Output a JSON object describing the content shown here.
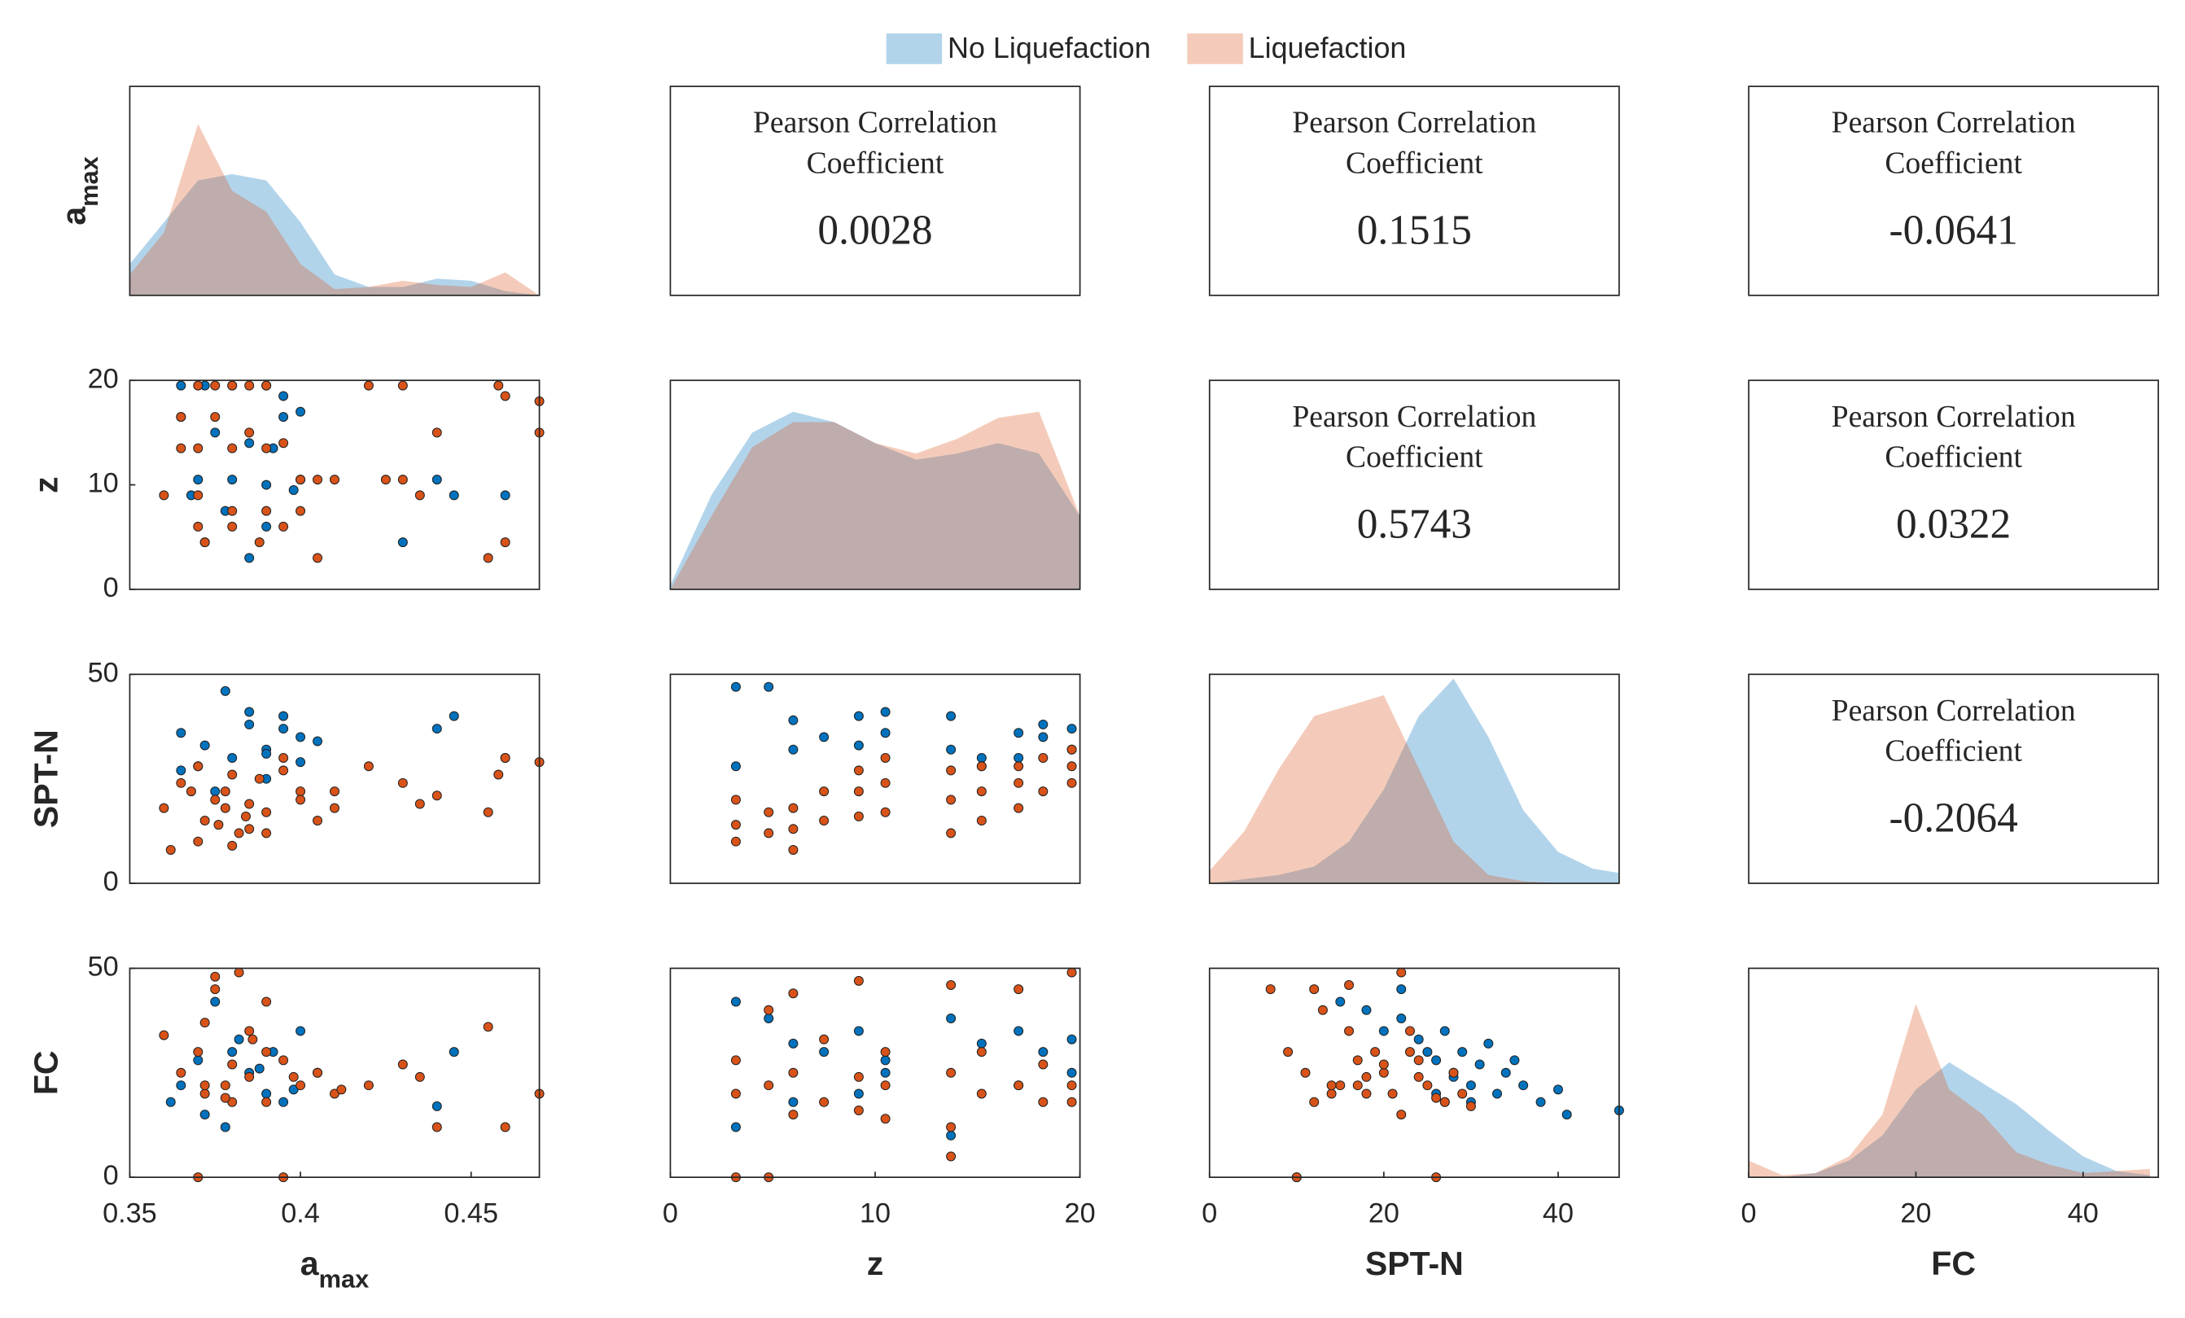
{
  "chart_data": [
    {
      "type": "density",
      "ylabel": {
        "text": "a",
        "sub": "max"
      },
      "xlim": [
        0.35,
        0.47
      ],
      "x": [
        0.35,
        0.36,
        0.37,
        0.38,
        0.39,
        0.4,
        0.41,
        0.42,
        0.43,
        0.44,
        0.45,
        0.46,
        0.47
      ],
      "series": [
        {
          "name": "No Liquefaction",
          "color": "#0072BD",
          "values": [
            0.15,
            0.35,
            0.55,
            0.58,
            0.55,
            0.35,
            0.1,
            0.04,
            0.04,
            0.08,
            0.07,
            0.02,
            0.0
          ]
        },
        {
          "name": "Liquefaction",
          "color": "#D95319",
          "values": [
            0.1,
            0.3,
            0.82,
            0.5,
            0.4,
            0.15,
            0.03,
            0.04,
            0.07,
            0.05,
            0.04,
            0.11,
            0.0
          ]
        }
      ]
    },
    {
      "type": "text",
      "title": [
        "Pearson Correlation",
        "Coefficient"
      ],
      "value": 0.0028
    },
    {
      "type": "text",
      "title": [
        "Pearson Correlation",
        "Coefficient"
      ],
      "value": 0.1515
    },
    {
      "type": "text",
      "title": [
        "Pearson Correlation",
        "Coefficient"
      ],
      "value": -0.0641
    },
    {
      "type": "scatter",
      "ylabel": "z",
      "xlim": [
        0.35,
        0.47
      ],
      "ylim": [
        0,
        20
      ],
      "yticks": [
        0,
        10,
        20
      ],
      "series": [
        {
          "color": "#0072BD",
          "x": [
            0.365,
            0.372,
            0.38,
            0.39,
            0.395,
            0.4,
            0.365,
            0.375,
            0.385,
            0.392,
            0.37,
            0.38,
            0.39,
            0.398,
            0.4,
            0.368,
            0.378,
            0.39,
            0.372,
            0.385,
            0.44,
            0.445,
            0.46,
            0.43,
            0.395
          ],
          "y": [
            19.5,
            19.5,
            19.5,
            19.5,
            18.5,
            17,
            16.5,
            15,
            14,
            13.5,
            10.5,
            10.5,
            10,
            9.5,
            10.5,
            9,
            7.5,
            6,
            4.5,
            3,
            10.5,
            9,
            9,
            4.5,
            16.5
          ]
        },
        {
          "color": "#D95319",
          "x": [
            0.37,
            0.375,
            0.38,
            0.385,
            0.39,
            0.42,
            0.43,
            0.458,
            0.46,
            0.47,
            0.365,
            0.375,
            0.385,
            0.395,
            0.365,
            0.37,
            0.38,
            0.39,
            0.4,
            0.405,
            0.41,
            0.425,
            0.43,
            0.435,
            0.36,
            0.37,
            0.38,
            0.39,
            0.4,
            0.37,
            0.38,
            0.395,
            0.372,
            0.388,
            0.405,
            0.455,
            0.46,
            0.44,
            0.47
          ],
          "y": [
            19.5,
            19.5,
            19.5,
            19.5,
            19.5,
            19.5,
            19.5,
            19.5,
            18.5,
            18,
            16.5,
            16.5,
            15,
            14,
            13.5,
            13.5,
            13.5,
            13.5,
            10.5,
            10.5,
            10.5,
            10.5,
            10.5,
            9,
            9,
            9,
            7.5,
            7.5,
            7.5,
            6,
            6,
            6,
            4.5,
            4.5,
            3,
            3,
            4.5,
            15,
            15
          ]
        }
      ]
    },
    {
      "type": "density",
      "xlim": [
        0,
        20
      ],
      "x": [
        0,
        2,
        4,
        6,
        8,
        10,
        12,
        14,
        16,
        18,
        20
      ],
      "series": [
        {
          "name": "No Liquefaction",
          "color": "#0072BD",
          "values": [
            0.02,
            0.45,
            0.75,
            0.85,
            0.8,
            0.7,
            0.62,
            0.65,
            0.7,
            0.65,
            0.35
          ]
        },
        {
          "name": "Liquefaction",
          "color": "#D95319",
          "values": [
            0.0,
            0.35,
            0.68,
            0.8,
            0.8,
            0.7,
            0.65,
            0.72,
            0.82,
            0.85,
            0.35
          ]
        }
      ]
    },
    {
      "type": "text",
      "title": [
        "Pearson Correlation",
        "Coefficient"
      ],
      "value": 0.5743
    },
    {
      "type": "text",
      "title": [
        "Pearson Correlation",
        "Coefficient"
      ],
      "value": 0.0322
    },
    {
      "type": "scatter",
      "ylabel": "SPT-N",
      "xlim": [
        0.35,
        0.47
      ],
      "ylim": [
        0,
        50
      ],
      "yticks": [
        0,
        50
      ],
      "series": [
        {
          "color": "#0072BD",
          "x": [
            0.365,
            0.372,
            0.378,
            0.385,
            0.39,
            0.395,
            0.4,
            0.405,
            0.37,
            0.38,
            0.39,
            0.395,
            0.375,
            0.385,
            0.4,
            0.44,
            0.445,
            0.46,
            0.365,
            0.39
          ],
          "y": [
            36,
            33,
            46,
            38,
            32,
            40,
            35,
            34,
            28,
            30,
            25,
            37,
            22,
            41,
            29,
            37,
            40,
            30,
            27,
            31
          ]
        },
        {
          "color": "#D95319",
          "x": [
            0.36,
            0.365,
            0.37,
            0.372,
            0.375,
            0.378,
            0.38,
            0.382,
            0.385,
            0.388,
            0.39,
            0.395,
            0.4,
            0.405,
            0.41,
            0.42,
            0.43,
            0.435,
            0.44,
            0.455,
            0.46,
            0.47,
            0.362,
            0.37,
            0.376,
            0.38,
            0.385,
            0.39,
            0.4,
            0.41,
            0.368,
            0.378,
            0.384,
            0.395,
            0.458
          ],
          "y": [
            18,
            24,
            28,
            15,
            20,
            22,
            26,
            12,
            19,
            25,
            17,
            30,
            22,
            15,
            18,
            28,
            24,
            19,
            21,
            17,
            30,
            29,
            8,
            10,
            14,
            9,
            13,
            12,
            20,
            22,
            22,
            18,
            16,
            27,
            26
          ]
        }
      ]
    },
    {
      "type": "scatter",
      "xlim": [
        0,
        20
      ],
      "ylim": [
        0,
        50
      ],
      "series": [
        {
          "color": "#0072BD",
          "x": [
            3.2,
            4.8,
            6,
            7.5,
            9.2,
            10.5,
            13.7,
            15.2,
            17,
            18.2,
            19.6,
            3.2,
            6,
            9.2,
            10.5,
            13.7,
            15.2,
            18.2,
            19.6,
            17
          ],
          "y": [
            47,
            47,
            39,
            35,
            40,
            41,
            40,
            30,
            36,
            38,
            37,
            28,
            32,
            33,
            36,
            32,
            28,
            35,
            32,
            30
          ]
        },
        {
          "color": "#D95319",
          "x": [
            3.2,
            3.2,
            3.2,
            4.8,
            4.8,
            6,
            6,
            6,
            7.5,
            7.5,
            9.2,
            9.2,
            9.2,
            10.5,
            10.5,
            10.5,
            13.7,
            13.7,
            13.7,
            15.2,
            15.2,
            15.2,
            17,
            17,
            17,
            18.2,
            18.2,
            19.6,
            19.6,
            19.6
          ],
          "y": [
            10,
            14,
            20,
            12,
            17,
            8,
            13,
            18,
            15,
            22,
            16,
            22,
            27,
            17,
            24,
            30,
            12,
            20,
            27,
            15,
            22,
            28,
            18,
            24,
            28,
            22,
            30,
            24,
            28,
            32
          ]
        }
      ]
    },
    {
      "type": "density",
      "xlim": [
        0,
        47
      ],
      "x": [
        0,
        4,
        8,
        12,
        16,
        20,
        24,
        28,
        32,
        36,
        40,
        44,
        47
      ],
      "series": [
        {
          "name": "No Liquefaction",
          "color": "#0072BD",
          "values": [
            0.0,
            0.02,
            0.04,
            0.08,
            0.2,
            0.45,
            0.8,
            0.98,
            0.7,
            0.35,
            0.15,
            0.07,
            0.05
          ]
        },
        {
          "name": "Liquefaction",
          "color": "#D95319",
          "values": [
            0.06,
            0.25,
            0.55,
            0.8,
            0.85,
            0.9,
            0.55,
            0.2,
            0.04,
            0.01,
            0.0,
            0.0,
            0.0
          ]
        }
      ]
    },
    {
      "type": "text",
      "title": [
        "Pearson Correlation",
        "Coefficient"
      ],
      "value": -0.2064
    },
    {
      "type": "scatter",
      "ylabel": "FC",
      "xlabel": {
        "text": "a",
        "sub": "max"
      },
      "xlim": [
        0.35,
        0.47
      ],
      "ylim": [
        0,
        50
      ],
      "xticks": [
        0.35,
        0.4,
        0.45
      ],
      "yticks": [
        0,
        50
      ],
      "series": [
        {
          "color": "#0072BD",
          "x": [
            0.362,
            0.37,
            0.375,
            0.38,
            0.385,
            0.39,
            0.395,
            0.4,
            0.365,
            0.378,
            0.388,
            0.398,
            0.44,
            0.445,
            0.372,
            0.405,
            0.382,
            0.392
          ],
          "y": [
            18,
            28,
            42,
            30,
            25,
            20,
            18,
            35,
            22,
            12,
            26,
            21,
            17,
            30,
            15,
            25,
            33,
            30
          ]
        },
        {
          "color": "#D95319",
          "x": [
            0.36,
            0.365,
            0.37,
            0.372,
            0.375,
            0.378,
            0.38,
            0.382,
            0.385,
            0.39,
            0.395,
            0.4,
            0.405,
            0.41,
            0.42,
            0.43,
            0.435,
            0.44,
            0.455,
            0.46,
            0.47,
            0.37,
            0.375,
            0.38,
            0.385,
            0.39,
            0.395,
            0.372,
            0.378,
            0.386,
            0.398,
            0.412,
            0.372,
            0.39
          ],
          "y": [
            34,
            25,
            30,
            20,
            45,
            22,
            27,
            49,
            24,
            18,
            28,
            22,
            25,
            20,
            22,
            27,
            24,
            12,
            36,
            12,
            20,
            0,
            48,
            18,
            35,
            30,
            0,
            22,
            19,
            33,
            24,
            21,
            37,
            42
          ]
        }
      ]
    },
    {
      "type": "scatter",
      "xlabel": "z",
      "xlim": [
        0,
        20
      ],
      "ylim": [
        0,
        50
      ],
      "xticks": [
        0,
        10,
        20
      ],
      "series": [
        {
          "color": "#0072BD",
          "x": [
            3.2,
            4.8,
            6,
            7.5,
            9.2,
            10.5,
            13.7,
            15.2,
            17,
            18.2,
            19.6,
            3.2,
            6,
            9.2,
            13.7,
            17,
            19.6,
            10.5
          ],
          "y": [
            42,
            38,
            32,
            30,
            35,
            25,
            38,
            32,
            35,
            30,
            33,
            12,
            18,
            20,
            10,
            22,
            25,
            28
          ]
        },
        {
          "color": "#D95319",
          "x": [
            3.2,
            3.2,
            3.2,
            4.8,
            4.8,
            4.8,
            6,
            6,
            7.5,
            7.5,
            9.2,
            9.2,
            9.2,
            10.5,
            10.5,
            13.7,
            13.7,
            13.7,
            15.2,
            15.2,
            17,
            17,
            18.2,
            18.2,
            19.6,
            19.6,
            19.6,
            13.7,
            6,
            10.5
          ],
          "y": [
            0,
            20,
            28,
            0,
            22,
            40,
            44,
            25,
            33,
            18,
            47,
            24,
            16,
            22,
            30,
            46,
            25,
            12,
            30,
            20,
            45,
            22,
            27,
            18,
            49,
            22,
            18,
            5,
            15,
            14
          ]
        }
      ]
    },
    {
      "type": "scatter",
      "xlabel": "SPT-N",
      "xlim": [
        0,
        47
      ],
      "ylim": [
        0,
        50
      ],
      "xticks": [
        0,
        20,
        40
      ],
      "series": [
        {
          "color": "#0072BD",
          "x": [
            15,
            18,
            20,
            22,
            24,
            25,
            26,
            27,
            28,
            29,
            30,
            31,
            32,
            33,
            34,
            36,
            38,
            40,
            41,
            47,
            22,
            26,
            30,
            35,
            28
          ],
          "y": [
            42,
            40,
            35,
            38,
            33,
            30,
            28,
            35,
            25,
            30,
            22,
            27,
            32,
            20,
            25,
            22,
            18,
            21,
            15,
            16,
            45,
            20,
            18,
            28,
            24
          ]
        },
        {
          "color": "#D95319",
          "x": [
            7,
            9,
            10,
            11,
            12,
            13,
            14,
            15,
            16,
            17,
            18,
            19,
            20,
            21,
            22,
            23,
            24,
            25,
            26,
            27,
            28,
            29,
            30,
            12,
            14,
            16,
            18,
            20,
            22,
            24,
            26,
            10,
            17,
            23,
            27
          ],
          "y": [
            45,
            30,
            0,
            25,
            45,
            40,
            20,
            22,
            46,
            28,
            24,
            30,
            25,
            20,
            49,
            35,
            28,
            22,
            0,
            18,
            25,
            20,
            17,
            18,
            22,
            35,
            20,
            27,
            15,
            24,
            19,
            0,
            22,
            30,
            18
          ]
        }
      ]
    },
    {
      "type": "density",
      "xlabel": "FC",
      "xlim": [
        0,
        49
      ],
      "xticks": [
        0,
        20,
        40
      ],
      "x": [
        0,
        4,
        8,
        12,
        16,
        20,
        24,
        28,
        32,
        36,
        40,
        44,
        48
      ],
      "series": [
        {
          "name": "No Liquefaction",
          "color": "#0072BD",
          "values": [
            0.0,
            0.0,
            0.02,
            0.08,
            0.2,
            0.42,
            0.55,
            0.45,
            0.35,
            0.22,
            0.1,
            0.03,
            0.01
          ]
        },
        {
          "name": "Liquefaction",
          "color": "#D95319",
          "values": [
            0.08,
            0.01,
            0.02,
            0.1,
            0.3,
            0.83,
            0.42,
            0.3,
            0.12,
            0.06,
            0.02,
            0.03,
            0.04
          ]
        }
      ]
    }
  ]
}
